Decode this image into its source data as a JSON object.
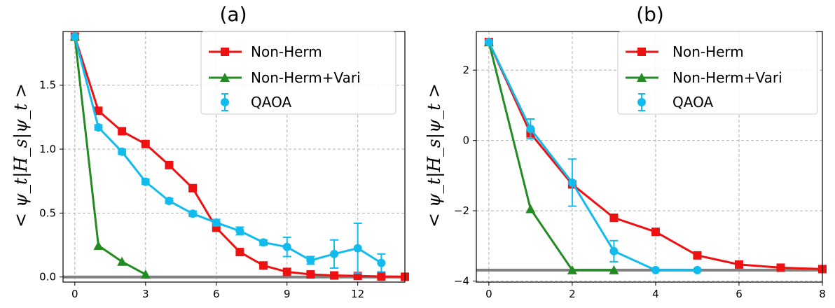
{
  "chart_data": [
    {
      "type": "line",
      "title": "(a)",
      "xlabel": "",
      "ylabel": "< ψ_t|H_s|ψ_t >",
      "xlim": [
        -0.5,
        14
      ],
      "ylim": [
        -0.04,
        1.92
      ],
      "xticks": [
        0,
        3,
        6,
        9,
        12
      ],
      "xtick_labels": [
        "0",
        "3",
        "6",
        "9",
        "12"
      ],
      "yticks": [
        0.0,
        0.5,
        1.0,
        1.5
      ],
      "ytick_labels": [
        "0.0",
        "0.5",
        "1.0",
        "1.5"
      ],
      "grid": true,
      "legend_position": "top-right",
      "series": [
        {
          "name": "Non-Herm",
          "color": "#ee1111",
          "marker": "square",
          "x": [
            0,
            1,
            2,
            3,
            4,
            5,
            6,
            7,
            8,
            9,
            10,
            11,
            12,
            13,
            14
          ],
          "y": [
            1.88,
            1.3,
            1.14,
            1.04,
            0.875,
            0.695,
            0.385,
            0.195,
            0.09,
            0.04,
            0.02,
            0.012,
            0.008,
            0.004,
            0.002
          ]
        },
        {
          "name": "Non-Herm+Vari",
          "color": "#228b22",
          "marker": "triangle",
          "x": [
            0,
            1,
            2,
            3
          ],
          "y": [
            1.88,
            0.245,
            0.12,
            0.02
          ]
        },
        {
          "name": "QAOA",
          "color": "#11bbee",
          "marker": "circle",
          "x": [
            0,
            1,
            2,
            3,
            4,
            5,
            6,
            7,
            8,
            9,
            10,
            11,
            12,
            13
          ],
          "y": [
            1.88,
            1.17,
            0.98,
            0.745,
            0.595,
            0.495,
            0.425,
            0.36,
            0.27,
            0.235,
            0.13,
            0.18,
            0.225,
            0.11
          ],
          "err": [
            0,
            0.02,
            0.02,
            0.02,
            0.02,
            0.02,
            0.025,
            0.03,
            0.02,
            0.075,
            0.03,
            0.11,
            0.195,
            0.07
          ]
        }
      ],
      "reference_line": {
        "y": 0.0,
        "color": "#808080"
      }
    },
    {
      "type": "line",
      "title": "(b)",
      "xlabel": "",
      "ylabel": "< ψ_t|H_s|ψ_t >",
      "xlim": [
        -0.3,
        8
      ],
      "ylim": [
        -4.03,
        3.1
      ],
      "xticks": [
        0,
        2,
        4,
        6,
        8
      ],
      "xtick_labels": [
        "0",
        "2",
        "4",
        "6",
        "8"
      ],
      "yticks": [
        -4,
        -2,
        0,
        2
      ],
      "ytick_labels": [
        "−4",
        "−2",
        "0",
        "2"
      ],
      "grid": true,
      "legend_position": "top-right",
      "series": [
        {
          "name": "Non-Herm",
          "color": "#ee1111",
          "marker": "square",
          "x": [
            0,
            1,
            2,
            3,
            4,
            5,
            6,
            7,
            8
          ],
          "y": [
            2.8,
            0.2,
            -1.25,
            -2.2,
            -2.6,
            -3.27,
            -3.53,
            -3.62,
            -3.66
          ]
        },
        {
          "name": "Non-Herm+Vari",
          "color": "#228b22",
          "marker": "triangle",
          "x": [
            0,
            1,
            2,
            3
          ],
          "y": [
            2.8,
            -1.95,
            -3.69,
            -3.69
          ]
        },
        {
          "name": "QAOA",
          "color": "#11bbee",
          "marker": "circle",
          "x": [
            0,
            1,
            2,
            3,
            4,
            5
          ],
          "y": [
            2.8,
            0.33,
            -1.2,
            -3.15,
            -3.69,
            -3.69
          ],
          "err": [
            0,
            0.28,
            0.67,
            0.3,
            0,
            0
          ]
        }
      ],
      "reference_line": {
        "y": -3.69,
        "color": "#808080"
      }
    }
  ],
  "panels": [
    {
      "title": "(a)",
      "ylabel": "< ψ_t|H_s|ψ_t >",
      "legend": [
        "Non-Herm",
        "Non-Herm+Vari",
        "QAOA"
      ]
    },
    {
      "title": "(b)",
      "ylabel": "< ψ_t|H_s|ψ_t >",
      "legend": [
        "Non-Herm",
        "Non-Herm+Vari",
        "QAOA"
      ]
    }
  ]
}
